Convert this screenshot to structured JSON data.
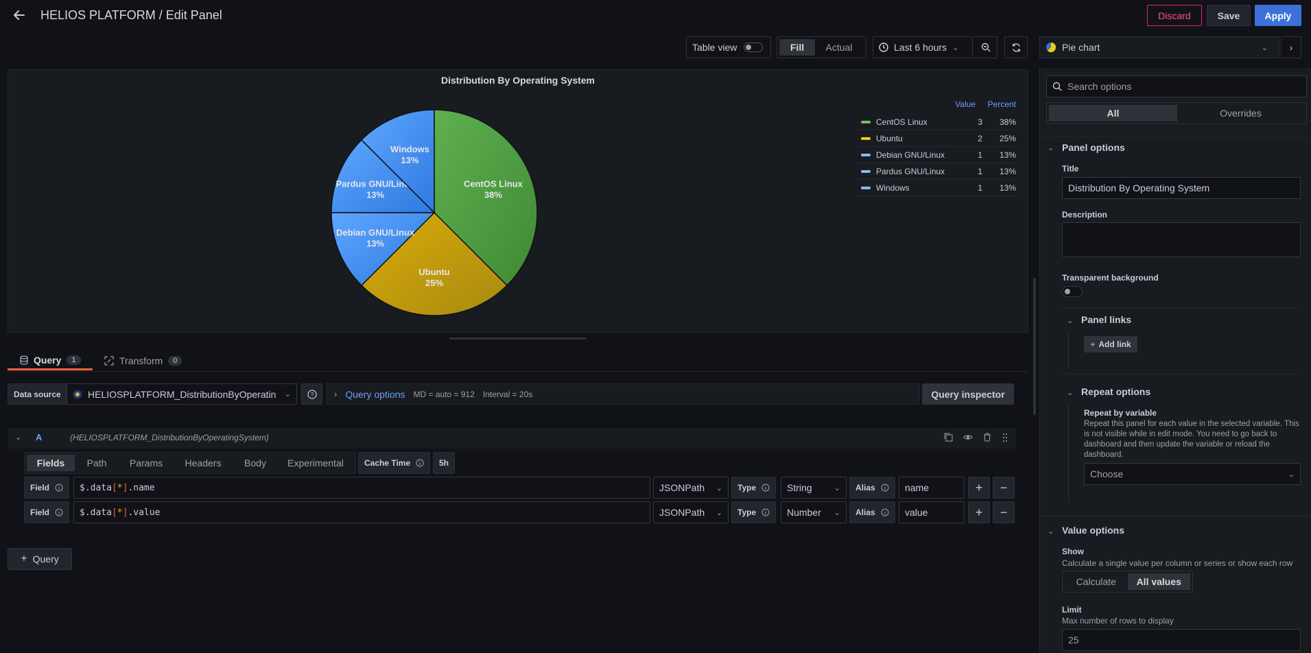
{
  "header": {
    "title": "HELIOS PLATFORM / Edit Panel",
    "discard_label": "Discard",
    "save_label": "Save",
    "apply_label": "Apply"
  },
  "toolbar": {
    "table_view_label": "Table view",
    "fill_label": "Fill",
    "actual_label": "Actual",
    "time_range_label": "Last 6 hours",
    "viz_picker_label": "Pie chart"
  },
  "chart_data": {
    "type": "pie",
    "title": "Distribution By Operating System",
    "slices": [
      {
        "name": "CentOS Linux",
        "value": 3,
        "percent": "38%",
        "color": "#56a64b"
      },
      {
        "name": "Ubuntu",
        "value": 2,
        "percent": "25%",
        "color": "#c4a00d"
      },
      {
        "name": "Debian GNU/Linux",
        "value": 1,
        "percent": "13%",
        "color": "#4d9bf5"
      },
      {
        "name": "Pardus GNU/Linux",
        "value": 1,
        "percent": "13%",
        "color": "#4d9bf5"
      },
      {
        "name": "Windows",
        "value": 1,
        "percent": "13%",
        "color": "#4d9bf5"
      }
    ],
    "legend": {
      "value_header": "Value",
      "percent_header": "Percent",
      "placement": "right"
    }
  },
  "query_tabs": {
    "query_label": "Query",
    "query_count": "1",
    "transform_label": "Transform",
    "transform_count": "0"
  },
  "query_row": {
    "data_source_label": "Data source",
    "data_source_value": "HELIOSPLATFORM_DistributionByOperatin",
    "query_options_label": "Query options",
    "md_text": "MD = auto = 912",
    "interval_text": "Interval = 20s",
    "inspector_label": "Query inspector"
  },
  "query_a": {
    "ref_id": "A",
    "ds_name": "(HELIOSPLATFORM_DistributionByOperatingSystem)",
    "tabs": [
      "Fields",
      "Path",
      "Params",
      "Headers",
      "Body",
      "Experimental"
    ],
    "cache_time_label": "Cache Time",
    "cache_time_value": "5h",
    "fields": [
      {
        "label": "Field",
        "selector_prefix": "$.data",
        "selector_bracket_open": "[",
        "selector_star": "*",
        "selector_bracket_close": "]",
        "selector_suffix": ".name",
        "mode": "JSONPath",
        "type_label": "Type",
        "type_value": "String",
        "alias_label": "Alias",
        "alias_value": "name"
      },
      {
        "label": "Field",
        "selector_prefix": "$.data",
        "selector_bracket_open": "[",
        "selector_star": "*",
        "selector_bracket_close": "]",
        "selector_suffix": ".value",
        "mode": "JSONPath",
        "type_label": "Type",
        "type_value": "Number",
        "alias_label": "Alias",
        "alias_value": "value"
      }
    ],
    "add_query_label": "Query"
  },
  "options": {
    "search_placeholder": "Search options",
    "tab_all": "All",
    "tab_overrides": "Overrides",
    "panel_options_title": "Panel options",
    "title_label": "Title",
    "title_value": "Distribution By Operating System",
    "description_label": "Description",
    "transparent_label": "Transparent background",
    "panel_links_title": "Panel links",
    "add_link_label": "Add link",
    "repeat_options_title": "Repeat options",
    "repeat_by_label": "Repeat by variable",
    "repeat_desc": "Repeat this panel for each value in the selected variable. This is not visible while in edit mode. You need to go back to dashboard and then update the variable or reload the dashboard.",
    "choose_placeholder": "Choose",
    "value_options_title": "Value options",
    "show_label": "Show",
    "show_desc": "Calculate a single value per column or series or show each row",
    "calculate_label": "Calculate",
    "all_values_label": "All values",
    "limit_label": "Limit",
    "limit_desc": "Max number of rows to display",
    "limit_placeholder": "25"
  },
  "colors": {
    "accent": "#3d71d9",
    "discard": "#e0226e",
    "orange_tab": "#f55f3e"
  }
}
